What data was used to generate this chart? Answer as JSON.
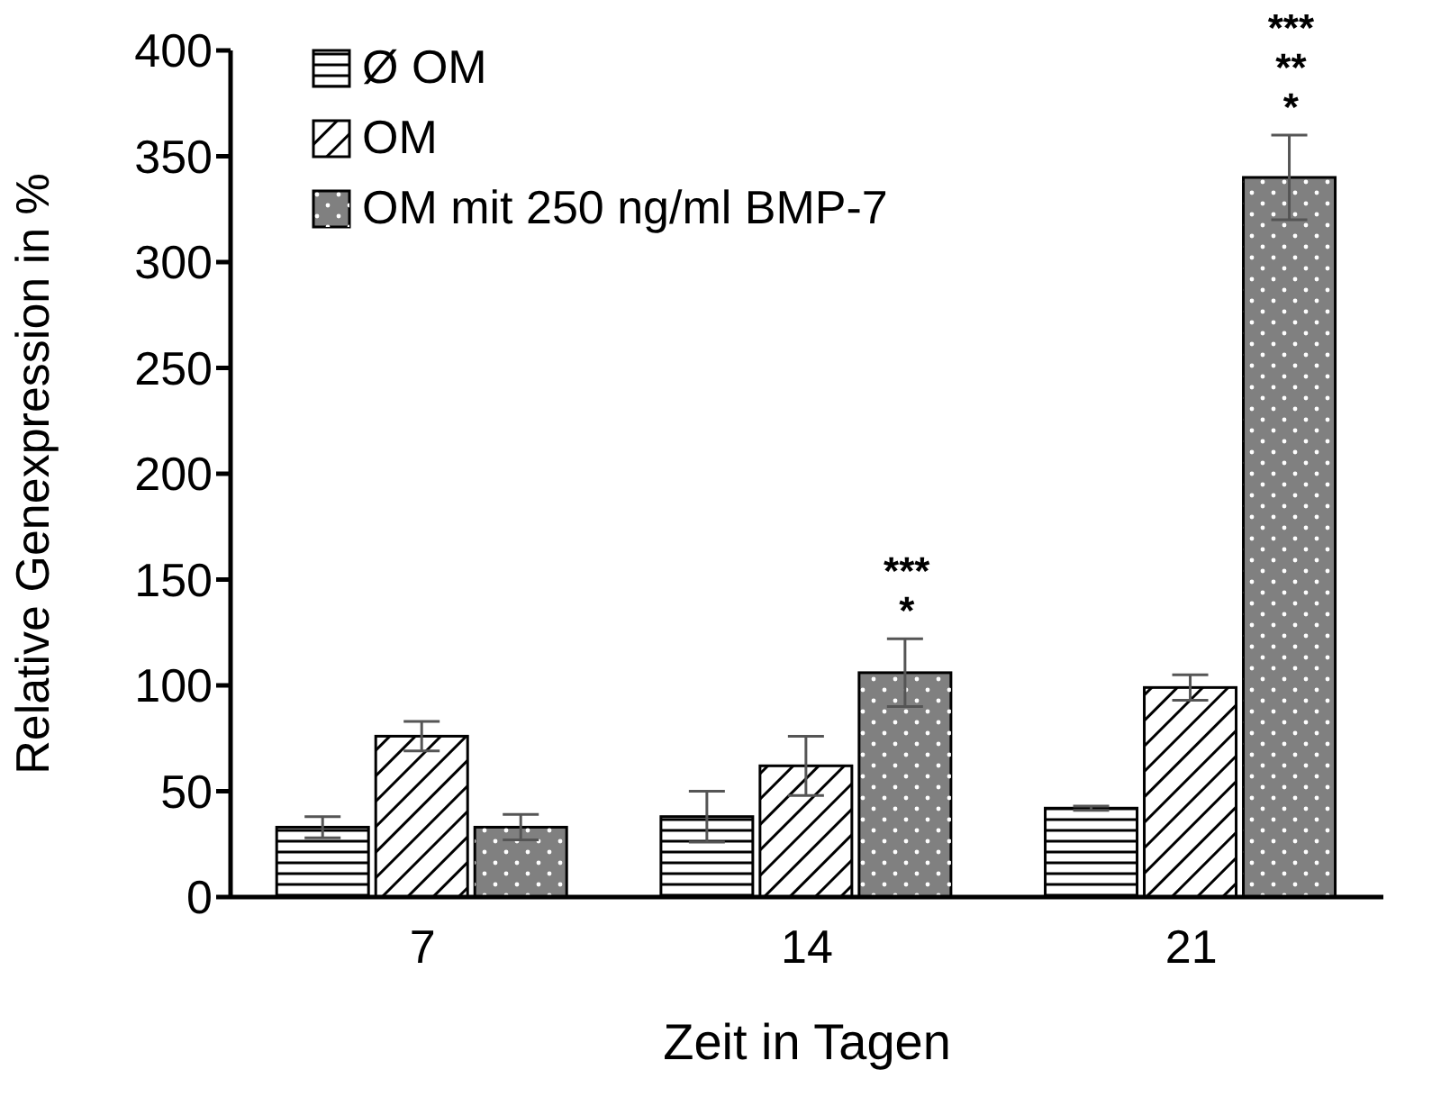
{
  "chart_data": {
    "type": "bar",
    "xlabel": "Zeit in Tagen",
    "ylabel": "Relative Genexpression in %",
    "categories": [
      "7",
      "14",
      "21"
    ],
    "series": [
      {
        "name": "Ø OM",
        "color": "#ffffff",
        "values": [
          33,
          38,
          42
        ],
        "errors": [
          5,
          12,
          1
        ]
      },
      {
        "name": "OM",
        "color": "#ffffff",
        "values": [
          76,
          62,
          99
        ],
        "errors": [
          7,
          14,
          6
        ]
      },
      {
        "name": "OM mit 250 ng/ml BMP-7",
        "color": "#808080",
        "values": [
          33,
          106,
          340
        ],
        "errors": [
          6,
          16,
          20
        ]
      }
    ],
    "ylim": [
      0,
      400
    ],
    "yticks": [
      0,
      50,
      100,
      150,
      200,
      250,
      300,
      350,
      400
    ],
    "grid": false,
    "legend": "top left",
    "annotations": [
      "***",
      "*",
      "***",
      "**",
      "*"
    ]
  }
}
